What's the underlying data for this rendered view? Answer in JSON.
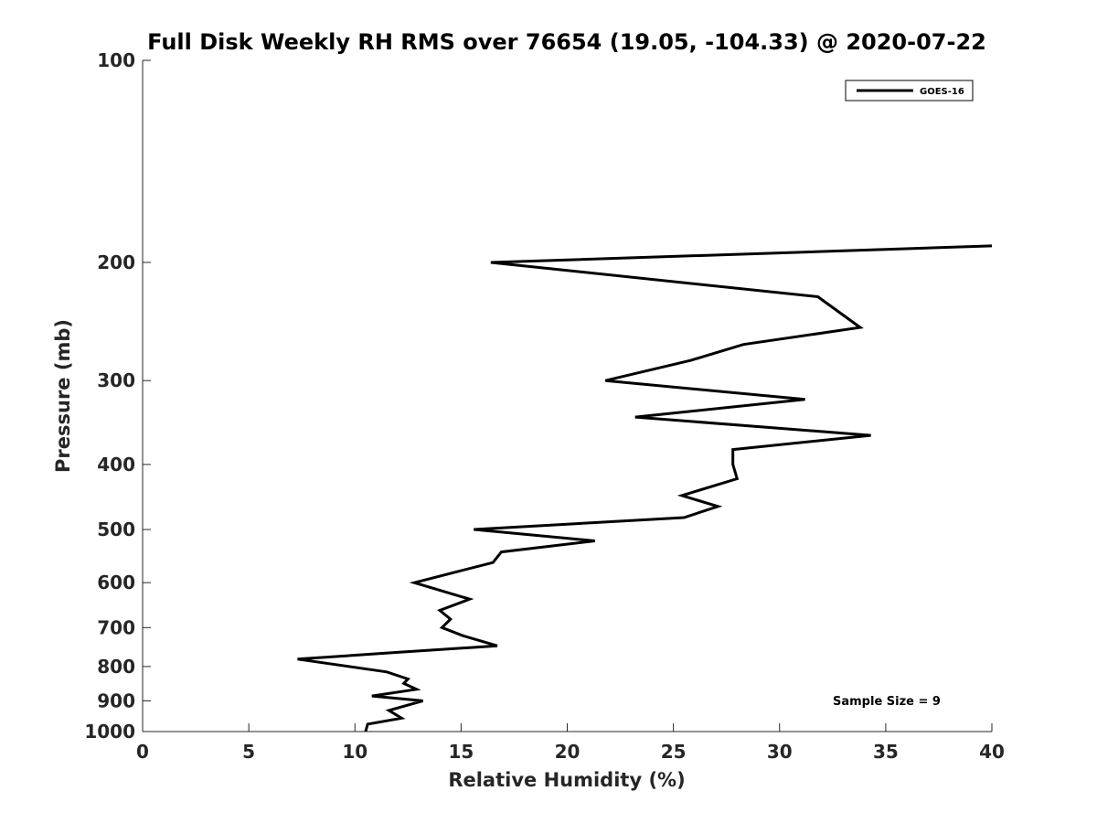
{
  "chart_data": {
    "type": "line",
    "title": "Full Disk Weekly RH RMS over 76654 (19.05, -104.33) @ 2020-07-22",
    "xlabel": "Relative Humidity (%)",
    "ylabel": "Pressure (mb)",
    "xlim": [
      0,
      40
    ],
    "ylim": [
      100,
      1000
    ],
    "y_scale": "log",
    "y_reversed": true,
    "grid": false,
    "legend_position": "top-right",
    "x_ticks": [
      0,
      5,
      10,
      15,
      20,
      25,
      30,
      35,
      40
    ],
    "x_tick_labels": [
      "0",
      "5",
      "10",
      "15",
      "20",
      "25",
      "30",
      "35",
      "40"
    ],
    "y_ticks": [
      100,
      200,
      300,
      400,
      500,
      600,
      700,
      800,
      900,
      1000
    ],
    "y_tick_labels": [
      "100",
      "200",
      "300",
      "400",
      "500",
      "600",
      "700",
      "800",
      "900",
      "1000"
    ],
    "series": [
      {
        "name": "GOES-16",
        "color": "#000000",
        "points": [
          {
            "x": 40.0,
            "y": 189
          },
          {
            "x": 16.4,
            "y": 200
          },
          {
            "x": 31.8,
            "y": 225
          },
          {
            "x": 33.8,
            "y": 250
          },
          {
            "x": 28.3,
            "y": 265
          },
          {
            "x": 25.8,
            "y": 280
          },
          {
            "x": 21.8,
            "y": 300
          },
          {
            "x": 31.2,
            "y": 320
          },
          {
            "x": 23.2,
            "y": 340
          },
          {
            "x": 34.3,
            "y": 362
          },
          {
            "x": 27.8,
            "y": 380
          },
          {
            "x": 27.8,
            "y": 400
          },
          {
            "x": 28.0,
            "y": 420
          },
          {
            "x": 25.4,
            "y": 445
          },
          {
            "x": 27.1,
            "y": 462
          },
          {
            "x": 25.5,
            "y": 480
          },
          {
            "x": 15.6,
            "y": 500
          },
          {
            "x": 21.3,
            "y": 520
          },
          {
            "x": 16.9,
            "y": 540
          },
          {
            "x": 16.5,
            "y": 560
          },
          {
            "x": 14.6,
            "y": 580
          },
          {
            "x": 12.8,
            "y": 600
          },
          {
            "x": 15.4,
            "y": 635
          },
          {
            "x": 14.0,
            "y": 660
          },
          {
            "x": 14.5,
            "y": 680
          },
          {
            "x": 14.1,
            "y": 700
          },
          {
            "x": 15.1,
            "y": 720
          },
          {
            "x": 16.7,
            "y": 745
          },
          {
            "x": 12.0,
            "y": 762
          },
          {
            "x": 7.3,
            "y": 780
          },
          {
            "x": 11.5,
            "y": 815
          },
          {
            "x": 12.5,
            "y": 835
          },
          {
            "x": 12.3,
            "y": 848
          },
          {
            "x": 12.9,
            "y": 865
          },
          {
            "x": 10.8,
            "y": 885
          },
          {
            "x": 13.2,
            "y": 900
          },
          {
            "x": 11.6,
            "y": 930
          },
          {
            "x": 12.2,
            "y": 955
          },
          {
            "x": 10.6,
            "y": 975
          },
          {
            "x": 10.5,
            "y": 1000
          }
        ]
      }
    ],
    "annotation": "Sample Size = 9"
  }
}
